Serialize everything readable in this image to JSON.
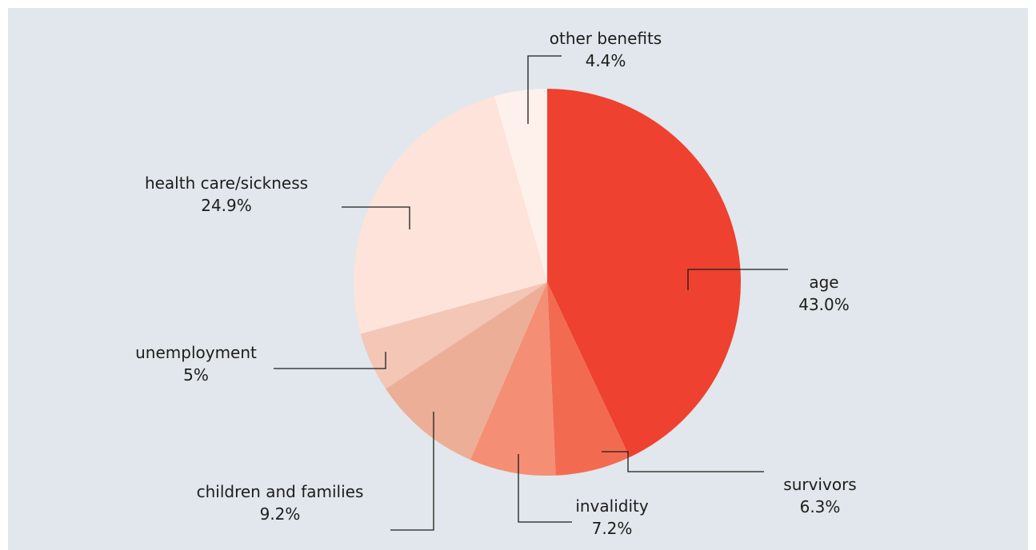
{
  "chart_data": {
    "type": "pie",
    "start_angle_deg": 0,
    "direction": "clockwise",
    "slices": [
      {
        "label": "age",
        "value": 43.0,
        "value_label": "43.0%",
        "color": "#ee4130"
      },
      {
        "label": "survivors",
        "value": 6.3,
        "value_label": "6.3%",
        "color": "#f26b50"
      },
      {
        "label": "invalidity",
        "value": 7.2,
        "value_label": "7.2%",
        "color": "#f48f75"
      },
      {
        "label": "children and families",
        "value": 9.2,
        "value_label": "9.2%",
        "color": "#edae97"
      },
      {
        "label": "unemployment",
        "value": 5.0,
        "value_label": "5%",
        "color": "#f3c6b6"
      },
      {
        "label": "health care/sickness",
        "value": 24.9,
        "value_label": "24.9%",
        "color": "#fde3d9"
      },
      {
        "label": "other benefits",
        "value": 4.4,
        "value_label": "4.4%",
        "color": "#fef1ec"
      }
    ]
  },
  "colors": {
    "background": "#e1e7ec",
    "text": "#1d1d1b",
    "leader": "#1d1d1b"
  }
}
